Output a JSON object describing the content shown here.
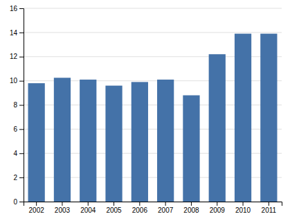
{
  "chart_data": {
    "type": "bar",
    "categories": [
      "2002",
      "2003",
      "2004",
      "2005",
      "2006",
      "2007",
      "2008",
      "2009",
      "2010",
      "2011"
    ],
    "values": [
      9.8,
      10.25,
      10.1,
      9.6,
      9.9,
      10.1,
      8.8,
      12.2,
      13.9,
      13.9
    ],
    "color": "#4472a8",
    "ylim": [
      0,
      16
    ],
    "yticks": [
      0,
      2,
      4,
      6,
      8,
      10,
      12,
      14,
      16
    ],
    "grid": true
  }
}
